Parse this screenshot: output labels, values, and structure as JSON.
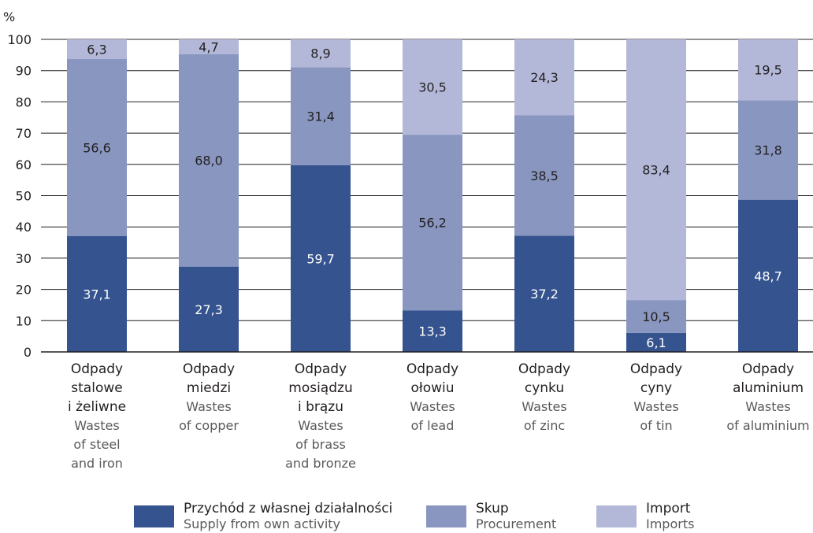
{
  "chart_data": {
    "type": "bar",
    "stacked": true,
    "ylabel": "%",
    "ylim": [
      0,
      100
    ],
    "yticks": [
      0,
      10,
      20,
      30,
      40,
      50,
      60,
      70,
      80,
      90,
      100
    ],
    "grid": true,
    "legend_position": "bottom",
    "categories": [
      {
        "pl": [
          "Odpady",
          "stalowe",
          "i żeliwne"
        ],
        "en": [
          "Wastes",
          "of steel",
          "and iron"
        ]
      },
      {
        "pl": [
          "Odpady",
          "miedzi"
        ],
        "en": [
          "Wastes",
          "of copper"
        ]
      },
      {
        "pl": [
          "Odpady",
          "mosiądzu",
          "i brązu"
        ],
        "en": [
          "Wastes",
          "of brass",
          "and bronze"
        ]
      },
      {
        "pl": [
          "Odpady",
          "ołowiu"
        ],
        "en": [
          "Wastes",
          "of lead"
        ]
      },
      {
        "pl": [
          "Odpady",
          "cynku"
        ],
        "en": [
          "Wastes",
          "of zinc"
        ]
      },
      {
        "pl": [
          "Odpady",
          "cyny"
        ],
        "en": [
          "Wastes",
          "of tin"
        ]
      },
      {
        "pl": [
          "Odpady",
          "aluminium"
        ],
        "en": [
          "Wastes",
          "of aluminium"
        ]
      }
    ],
    "series": [
      {
        "name_pl": "Przychód z własnej działalności",
        "name_en": "Supply from own activity",
        "color": "#34538f",
        "label_color": "#ffffff",
        "values": [
          37.1,
          27.3,
          59.7,
          13.3,
          37.2,
          6.1,
          48.7
        ],
        "labels": [
          "37,1",
          "27,3",
          "59,7",
          "13,3",
          "37,2",
          "6,1",
          "48,7"
        ]
      },
      {
        "name_pl": "Skup",
        "name_en": "Procurement",
        "color": "#8896c0",
        "label_color": "#231f20",
        "values": [
          56.6,
          68.0,
          31.4,
          56.2,
          38.5,
          10.5,
          31.8
        ],
        "labels": [
          "56,6",
          "68,0",
          "31,4",
          "56,2",
          "38,5",
          "10,5",
          "31,8"
        ]
      },
      {
        "name_pl": "Import",
        "name_en": "Imports",
        "color": "#b3b8d9",
        "label_color": "#231f20",
        "values": [
          6.3,
          4.7,
          8.9,
          30.5,
          24.3,
          83.4,
          19.5
        ],
        "labels": [
          "6,3",
          "4,7",
          "8,9",
          "30,5",
          "24,3",
          "83,4",
          "19,5"
        ]
      }
    ]
  }
}
